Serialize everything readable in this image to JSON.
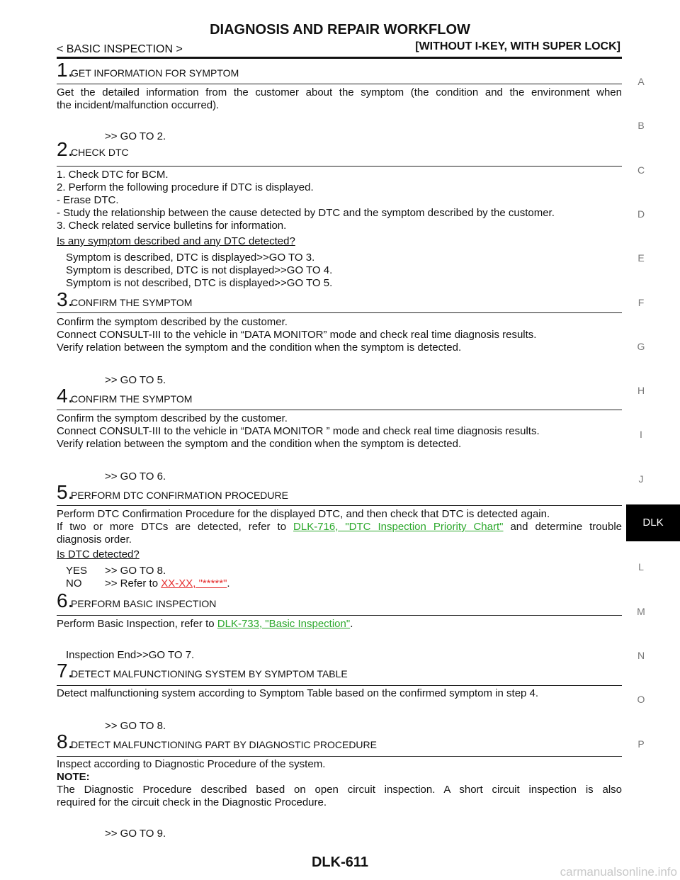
{
  "header": {
    "title": "DIAGNOSIS AND REPAIR WORKFLOW",
    "section": "< BASIC INSPECTION >",
    "scope": "[WITHOUT I-KEY, WITH SUPER LOCK]"
  },
  "side_index": [
    "A",
    "B",
    "C",
    "D",
    "E",
    "F",
    "G",
    "H",
    "I",
    "J",
    "DLK",
    "L",
    "M",
    "N",
    "O",
    "P"
  ],
  "steps": [
    {
      "number": "1.",
      "title": "GET INFORMATION FOR SYMPTOM",
      "body": [
        "Get the detailed information from the customer about the symptom (the condition and the environment when",
        "the incident/malfunction occurred)."
      ],
      "next": ">> GO TO 2."
    },
    {
      "number": "2.",
      "title": "CHECK DTC",
      "body": [
        "1. Check DTC for BCM.",
        "2. Perform the following procedure if DTC is displayed.",
        "- Erase DTC.",
        "- Study the relationship between the cause detected by DTC and the symptom described by the customer.",
        "3. Check related service bulletins for information."
      ],
      "question": "Is any symptom described and any DTC detected?",
      "results": [
        "Symptom is described, DTC is displayed>>GO TO 3.",
        "Symptom is described, DTC is not displayed>>GO TO 4.",
        "Symptom is not described, DTC is displayed>>GO TO 5."
      ]
    },
    {
      "number": "3.",
      "title": "CONFIRM THE SYMPTOM",
      "body": [
        "Confirm the symptom described by the customer.",
        "Connect CONSULT-III to the vehicle in “DATA MONITOR” mode and check real time diagnosis results.",
        "Verify relation between the symptom and the condition when the symptom is detected."
      ],
      "next": ">> GO TO 5."
    },
    {
      "number": "4.",
      "title": "CONFIRM THE SYMPTOM",
      "body": [
        "Confirm the symptom described by the customer.",
        "Connect CONSULT-III to the vehicle in “DATA MONITOR ” mode and check real time diagnosis results.",
        "Verify relation between the symptom and the condition when the symptom is detected."
      ],
      "next": ">> GO TO 6."
    },
    {
      "number": "5.",
      "title": "PERFORM DTC CONFIRMATION PROCEDURE",
      "body": [
        "Perform DTC Confirmation Procedure for the displayed DTC, and then check that DTC is detected again.",
        {
          "text": "If two or more DTCs are detected, refer to ",
          "link": "DLK-716, \"DTC Inspection Priority Chart\"",
          "after": " and determine trouble"
        },
        "diagnosis order."
      ],
      "question": "Is DTC detected?",
      "results": [
        {
          "label": "YES",
          "text": ">> GO TO 8."
        },
        {
          "label": "NO",
          "text": ">> Refer to ",
          "link": "XX-XX, \"*****\"",
          "after": "."
        }
      ]
    },
    {
      "number": "6.",
      "title": "PERFORM BASIC INSPECTION",
      "body": [
        {
          "text": "Perform Basic Inspection, refer to ",
          "link": "DLK-733, \"Basic Inspection\"",
          "after": "."
        }
      ],
      "next": "Inspection End>>GO TO 7."
    },
    {
      "number": "7.",
      "title": "DETECT MALFUNCTIONING SYSTEM BY SYMPTOM TABLE",
      "body": [
        "Detect malfunctioning system according to Symptom Table based on the confirmed symptom in step 4."
      ],
      "next": ">> GO TO 8."
    },
    {
      "number": "8.",
      "title": "DETECT MALFUNCTIONING PART BY DIAGNOSTIC PROCEDURE",
      "body": [
        "Inspect according to Diagnostic Procedure of the system."
      ],
      "note_label": "NOTE:",
      "note": [
        "The Diagnostic Procedure described based on open circuit inspection. A short circuit inspection is also",
        "required for the circuit check in the Diagnostic Procedure."
      ],
      "next": ">> GO TO 9."
    }
  ],
  "footer": {
    "page": "DLK-611",
    "watermark": "carmanualsonline.info"
  }
}
